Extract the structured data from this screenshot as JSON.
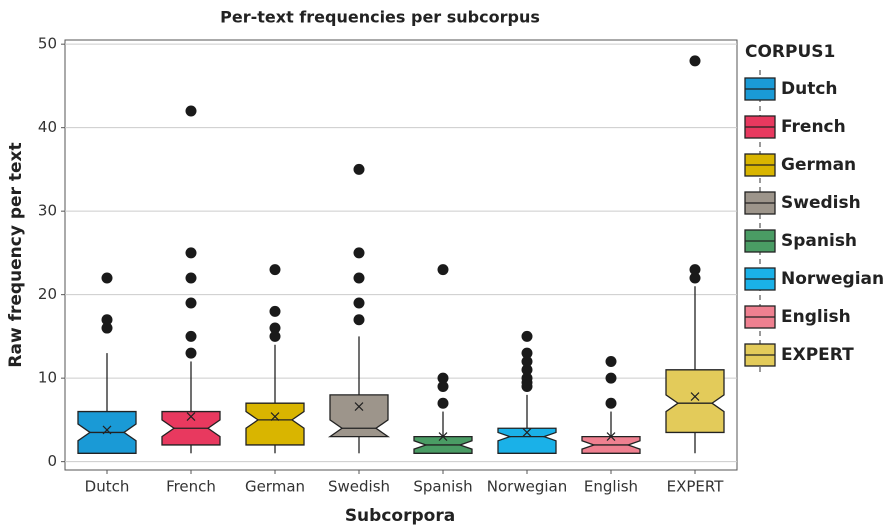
{
  "chart_data": {
    "type": "box",
    "title": "Per-text frequencies per subcorpus",
    "x_label": "Subcorpora",
    "y_label": "Raw frequency per text",
    "legend_title": "CORPUS1",
    "categories": [
      "Dutch",
      "French",
      "German",
      "Swedish",
      "Spanish",
      "Norwegian",
      "English",
      "EXPERT"
    ],
    "ylim": [
      -1,
      50.5
    ],
    "yticks": [
      0,
      10,
      20,
      30,
      40,
      50
    ],
    "grid": true,
    "series": [
      {
        "name": "Dutch",
        "color": "#1a9ad6",
        "whisker_low": 1,
        "q1": 1,
        "notch_low": 2.5,
        "median": 3.5,
        "notch_high": 4.5,
        "q3": 6,
        "whisker_high": 13,
        "mean": 3.8,
        "outliers": [
          16,
          17,
          22
        ]
      },
      {
        "name": "French",
        "color": "#e8395f",
        "whisker_low": 1,
        "q1": 2,
        "notch_low": 3,
        "median": 4,
        "notch_high": 5,
        "q3": 6,
        "whisker_high": 12,
        "mean": 5.4,
        "outliers": [
          13,
          15,
          19,
          22,
          25,
          42
        ]
      },
      {
        "name": "German",
        "color": "#d9b500",
        "whisker_low": 1,
        "q1": 2,
        "notch_low": 4,
        "median": 5,
        "notch_high": 6,
        "q3": 7,
        "whisker_high": 14,
        "mean": 5.4,
        "outliers": [
          15,
          16,
          18,
          23
        ]
      },
      {
        "name": "Swedish",
        "color": "#9d958b",
        "whisker_low": 1,
        "q1": 3,
        "notch_low": 3,
        "median": 4,
        "notch_high": 5,
        "q3": 8,
        "whisker_high": 15,
        "mean": 6.6,
        "outliers": [
          17,
          19,
          22,
          25,
          35
        ]
      },
      {
        "name": "Spanish",
        "color": "#4a9c64",
        "whisker_low": 1,
        "q1": 1,
        "notch_low": 1.5,
        "median": 2,
        "notch_high": 2.5,
        "q3": 3,
        "whisker_high": 6,
        "mean": 3,
        "outliers": [
          7,
          9,
          10,
          23
        ]
      },
      {
        "name": "Norwegian",
        "color": "#1ab1e8",
        "whisker_low": 1,
        "q1": 1,
        "notch_low": 2.5,
        "median": 3,
        "notch_high": 3.5,
        "q3": 4,
        "whisker_high": 8,
        "mean": 3.5,
        "outliers": [
          9,
          9.5,
          10,
          11,
          12,
          13,
          15
        ]
      },
      {
        "name": "English",
        "color": "#ef8090",
        "whisker_low": 1,
        "q1": 1,
        "notch_low": 1.5,
        "median": 2,
        "notch_high": 2.5,
        "q3": 3,
        "whisker_high": 6,
        "mean": 3,
        "outliers": [
          7,
          10,
          12
        ]
      },
      {
        "name": "EXPERT",
        "color": "#e3cb5a",
        "whisker_low": 1,
        "q1": 3.5,
        "notch_low": 6,
        "median": 7,
        "notch_high": 8,
        "q3": 11,
        "whisker_high": 21,
        "mean": 7.8,
        "outliers": [
          22,
          23,
          48
        ]
      }
    ]
  }
}
